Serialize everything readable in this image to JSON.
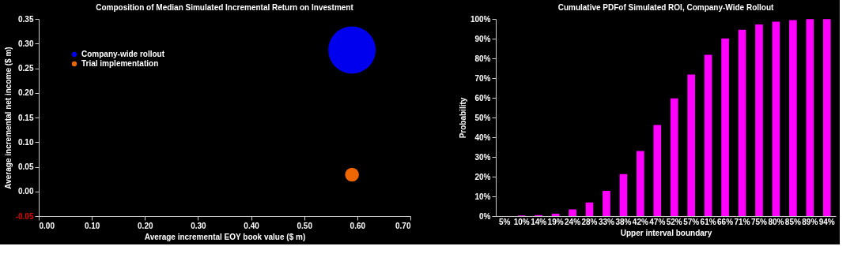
{
  "chart_data": [
    {
      "type": "bubble",
      "title": "Composition of Median Simulated Incremental Return on Investment",
      "xlabel": "Average incremental EOY book value ($ m)",
      "ylabel": "Average incremental net income  ($ m)",
      "series": [
        {
          "name": "Company-wide rollout",
          "color": "#0000ee",
          "x": [
            0.59
          ],
          "values": [
            0.287
          ],
          "sizes": [
            1
          ]
        },
        {
          "name": "Trial implementation",
          "color": "#ee6600",
          "x": [
            0.59
          ],
          "values": [
            0.034
          ],
          "sizes": [
            0.085
          ]
        }
      ],
      "xlim": [
        0,
        0.7
      ],
      "xticks": [
        {
          "value": 0,
          "label": "0.00"
        },
        {
          "value": 0.1,
          "label": "0.10"
        },
        {
          "value": 0.2,
          "label": "0.20"
        },
        {
          "value": 0.3,
          "label": "0.30"
        },
        {
          "value": 0.4,
          "label": "0.40"
        },
        {
          "value": 0.5,
          "label": "0.50"
        },
        {
          "value": 0.6,
          "label": "0.60"
        },
        {
          "value": 0.7,
          "label": "0.70"
        }
      ],
      "ylim": [
        -0.05,
        0.35
      ],
      "yticks": [
        {
          "value": -0.05,
          "label": "-0.05"
        },
        {
          "value": 0,
          "label": "0.00"
        },
        {
          "value": 0.05,
          "label": "0.05"
        },
        {
          "value": 0.1,
          "label": "0.10"
        },
        {
          "value": 0.15,
          "label": "0.15"
        },
        {
          "value": 0.2,
          "label": "0.20"
        },
        {
          "value": 0.25,
          "label": "0.25"
        },
        {
          "value": 0.3,
          "label": "0.30"
        },
        {
          "value": 0.35,
          "label": "0.35"
        }
      ],
      "grid": false,
      "legend": "top left"
    },
    {
      "type": "bar",
      "title": "Cumulative PDFof Simulated ROI, Company-Wide Rollout",
      "xlabel": "Upper interval boundary",
      "ylabel": "Probability",
      "categories": [
        "5%",
        "10%",
        "14%",
        "19%",
        "24%",
        "28%",
        "33%",
        "38%",
        "42%",
        "47%",
        "52%",
        "57%",
        "61%",
        "66%",
        "71%",
        "75%",
        "80%",
        "85%",
        "89%",
        "94%"
      ],
      "values": [
        0,
        0.3,
        0.5,
        1.2,
        3.4,
        6.9,
        12.8,
        21.3,
        33,
        46.2,
        59.7,
        71.8,
        81.8,
        90.1,
        94.5,
        97.2,
        98.6,
        99.4,
        99.9,
        99.9
      ],
      "color": "#ff00ff",
      "ylim": [
        0,
        100
      ],
      "yticks": [
        {
          "value": 0,
          "label": "0%"
        },
        {
          "value": 10,
          "label": "10%"
        },
        {
          "value": 20,
          "label": "20%"
        },
        {
          "value": 30,
          "label": "30%"
        },
        {
          "value": 40,
          "label": "40%"
        },
        {
          "value": 50,
          "label": "50%"
        },
        {
          "value": 60,
          "label": "60%"
        },
        {
          "value": 70,
          "label": "70%"
        },
        {
          "value": 80,
          "label": "80%"
        },
        {
          "value": 90,
          "label": "90%"
        },
        {
          "value": 100,
          "label": "100%"
        }
      ],
      "grid": false,
      "legend": false
    }
  ]
}
